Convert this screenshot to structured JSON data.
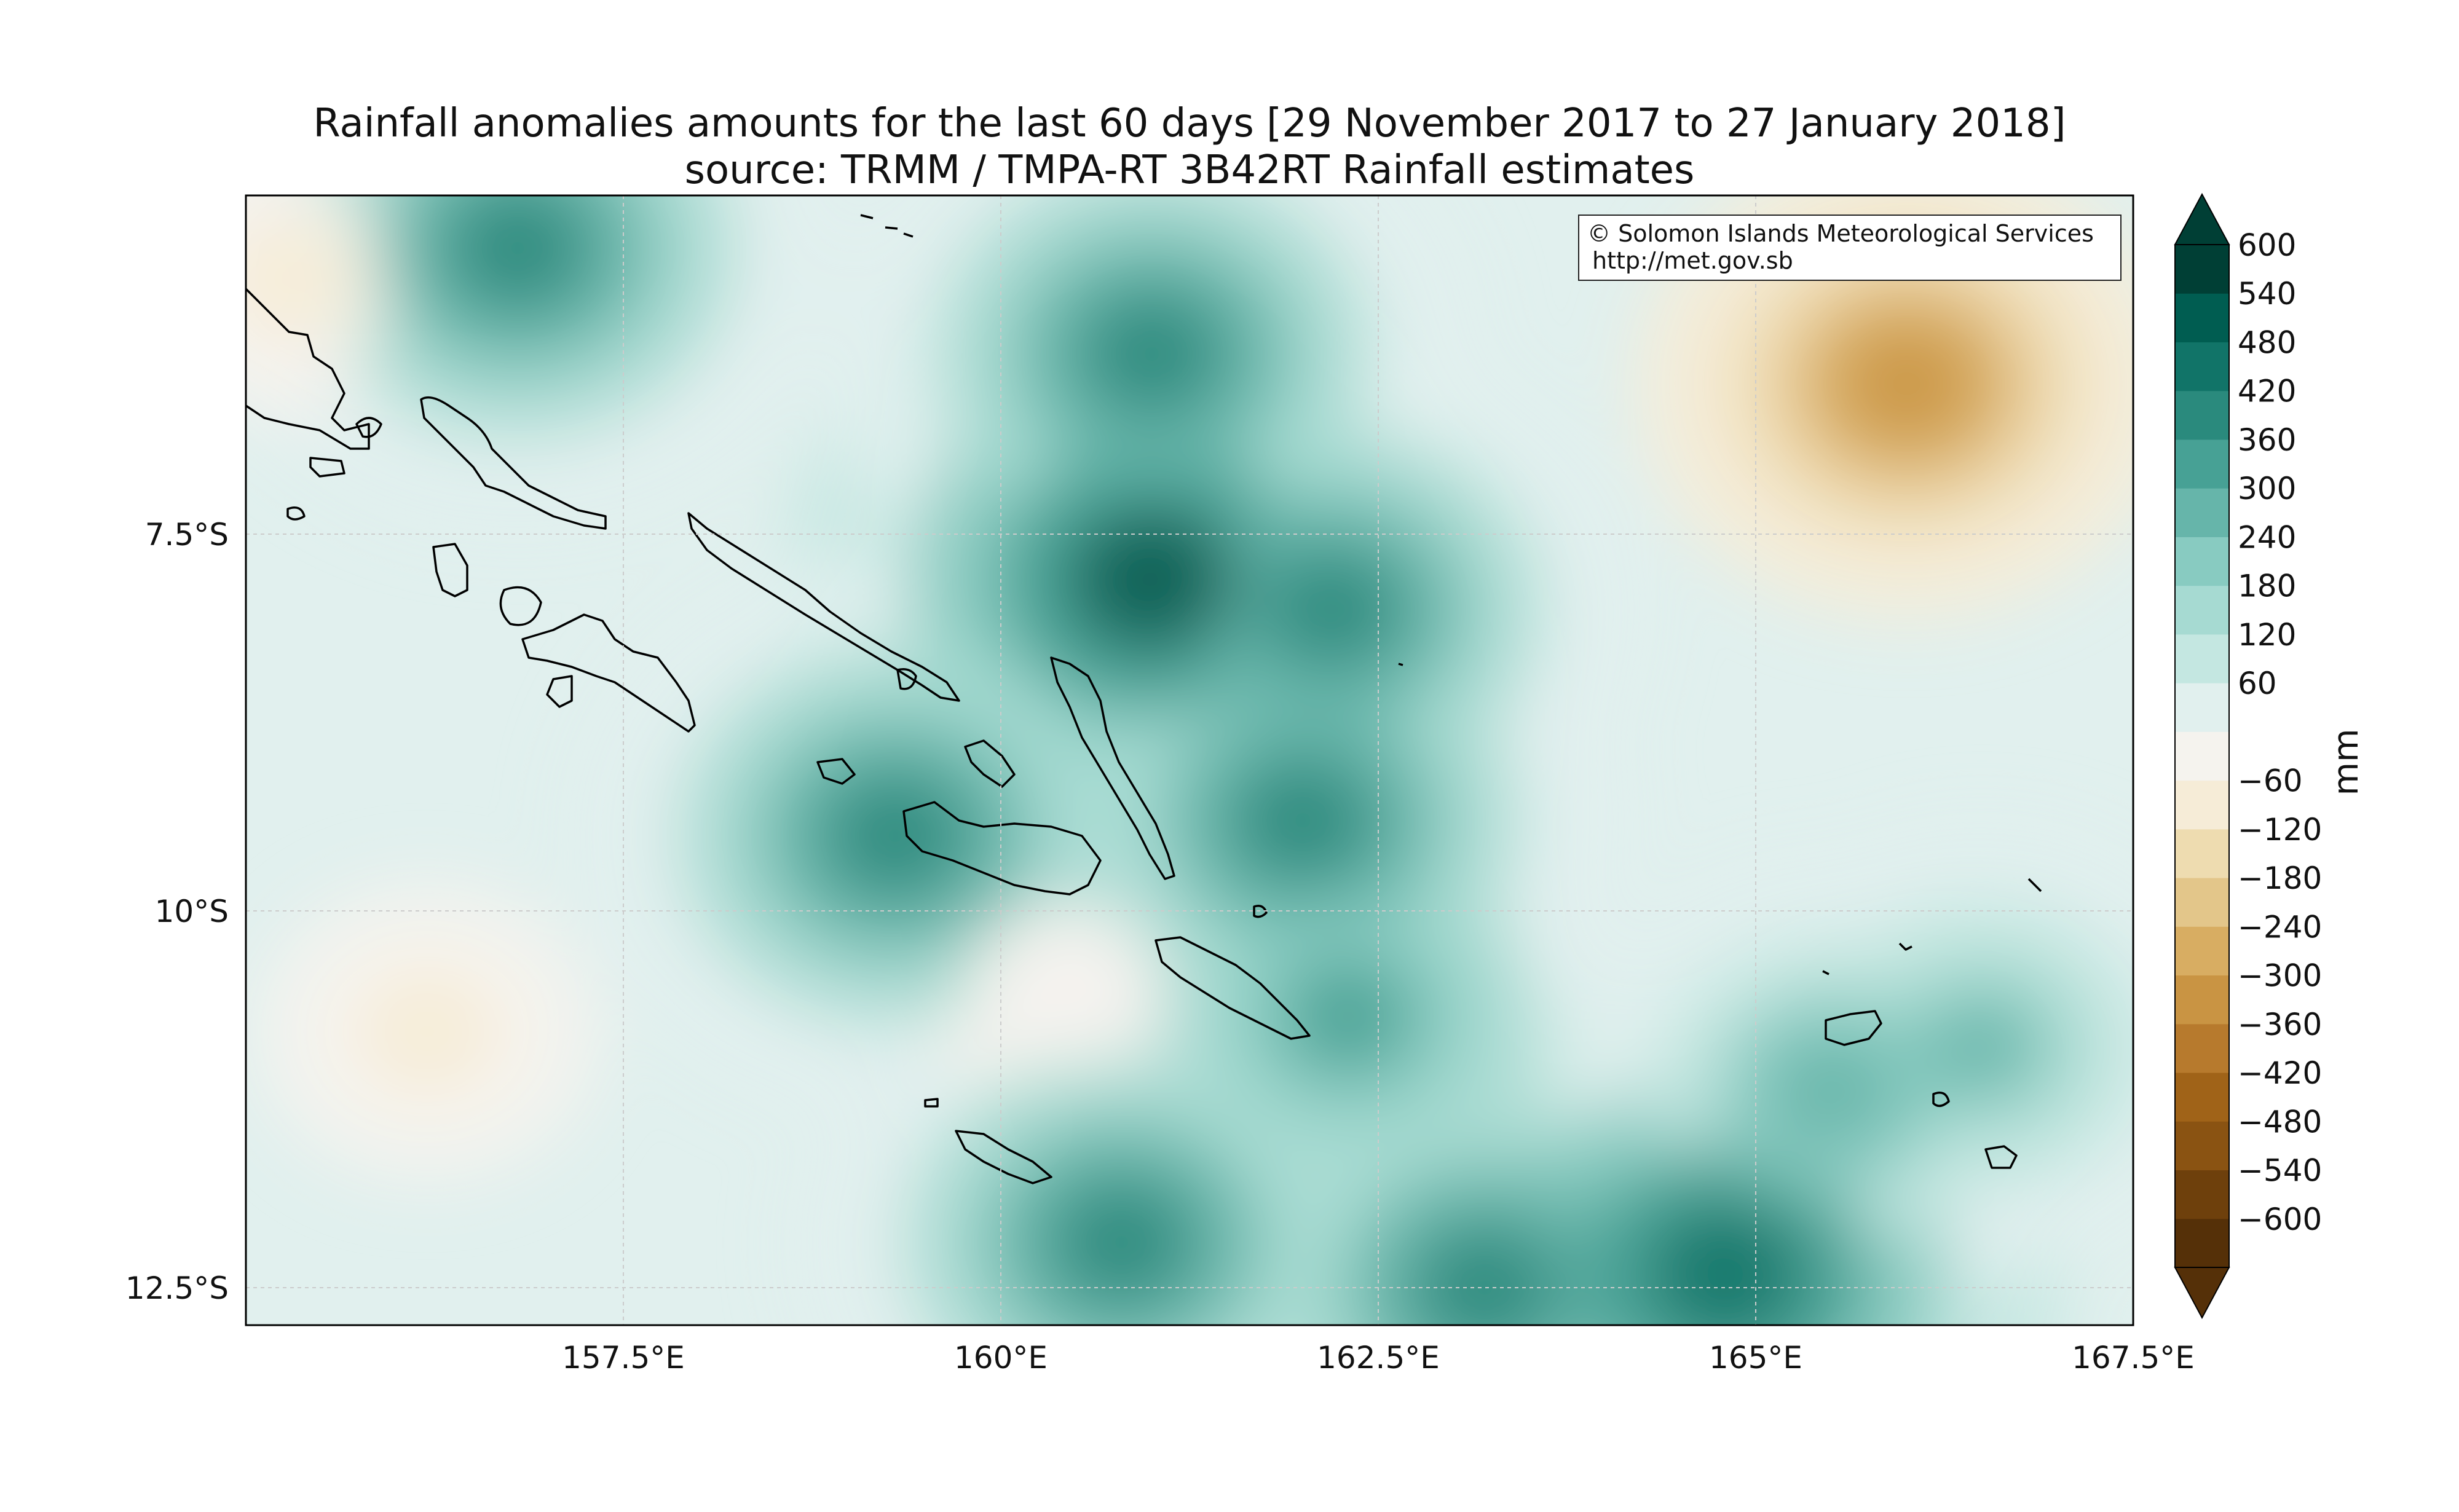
{
  "title": {
    "line1": "Rainfall anomalies amounts for the last 60 days [29 November 2017 to 27 January 2018]",
    "line2": "source: TRMM / TMPA-RT 3B42RT Rainfall estimates"
  },
  "credit": {
    "line1": "© Solomon Islands Meteorological Services",
    "line2": "http://met.gov.sb"
  },
  "map": {
    "lon_range": [
      155.0,
      167.5
    ],
    "lat_range": [
      -12.75,
      -5.25
    ],
    "lon_ticks": [
      "157.5°E",
      "160°E",
      "162.5°E",
      "165°E",
      "167.5°E"
    ],
    "lat_ticks": [
      "7.5°S",
      "10°S",
      "12.5°S"
    ],
    "grid": true,
    "coastlines": true,
    "field": "rainfall anomaly (mm)",
    "wet_cores": [
      {
        "lon": 156.8,
        "lat": -5.6,
        "value": 450
      },
      {
        "lon": 161.0,
        "lat": -7.8,
        "value": 540
      },
      {
        "lon": 161.0,
        "lat": -6.3,
        "value": 450
      },
      {
        "lon": 162.2,
        "lat": -8.0,
        "value": 420
      },
      {
        "lon": 162.0,
        "lat": -9.4,
        "value": 450
      },
      {
        "lon": 159.3,
        "lat": -9.5,
        "value": 450
      },
      {
        "lon": 162.3,
        "lat": -10.7,
        "value": 360
      },
      {
        "lon": 160.8,
        "lat": -12.2,
        "value": 450
      },
      {
        "lon": 163.2,
        "lat": -12.5,
        "value": 450
      },
      {
        "lon": 164.8,
        "lat": -12.4,
        "value": 480
      },
      {
        "lon": 166.5,
        "lat": -10.9,
        "value": 300
      },
      {
        "lon": 165.5,
        "lat": -11.2,
        "value": 330
      }
    ],
    "dry_cores": [
      {
        "lon": 166.0,
        "lat": -6.5,
        "value": -330
      },
      {
        "lon": 156.2,
        "lat": -10.8,
        "value": -120
      },
      {
        "lon": 160.4,
        "lat": -10.5,
        "value": -60
      },
      {
        "lon": 155.3,
        "lat": -5.8,
        "value": -100
      }
    ]
  },
  "colorbar": {
    "label": "mm",
    "ticks": [
      "600",
      "540",
      "480",
      "420",
      "360",
      "300",
      "240",
      "180",
      "120",
      "60",
      "−60",
      "−120",
      "−180",
      "−240",
      "−300",
      "−360",
      "−420",
      "−480",
      "−540",
      "−600"
    ],
    "levels": [
      -600,
      -540,
      -480,
      -420,
      -360,
      -300,
      -240,
      -180,
      -120,
      -60,
      60,
      120,
      180,
      240,
      300,
      360,
      420,
      480,
      540,
      600
    ],
    "colors": [
      "#553008",
      "#6e400c",
      "#8a5312",
      "#a06318",
      "#b77a2d",
      "#c99443",
      "#d8ad62",
      "#e3c68a",
      "#eedcb0",
      "#f6ecd7",
      "#f5f3ee",
      "#e1f0ee",
      "#c4e7e1",
      "#a6dad2",
      "#88cbc1",
      "#66b5aa",
      "#47a195",
      "#2a8a7d",
      "#117468",
      "#005d51",
      "#003f35"
    ],
    "extend": "both"
  }
}
